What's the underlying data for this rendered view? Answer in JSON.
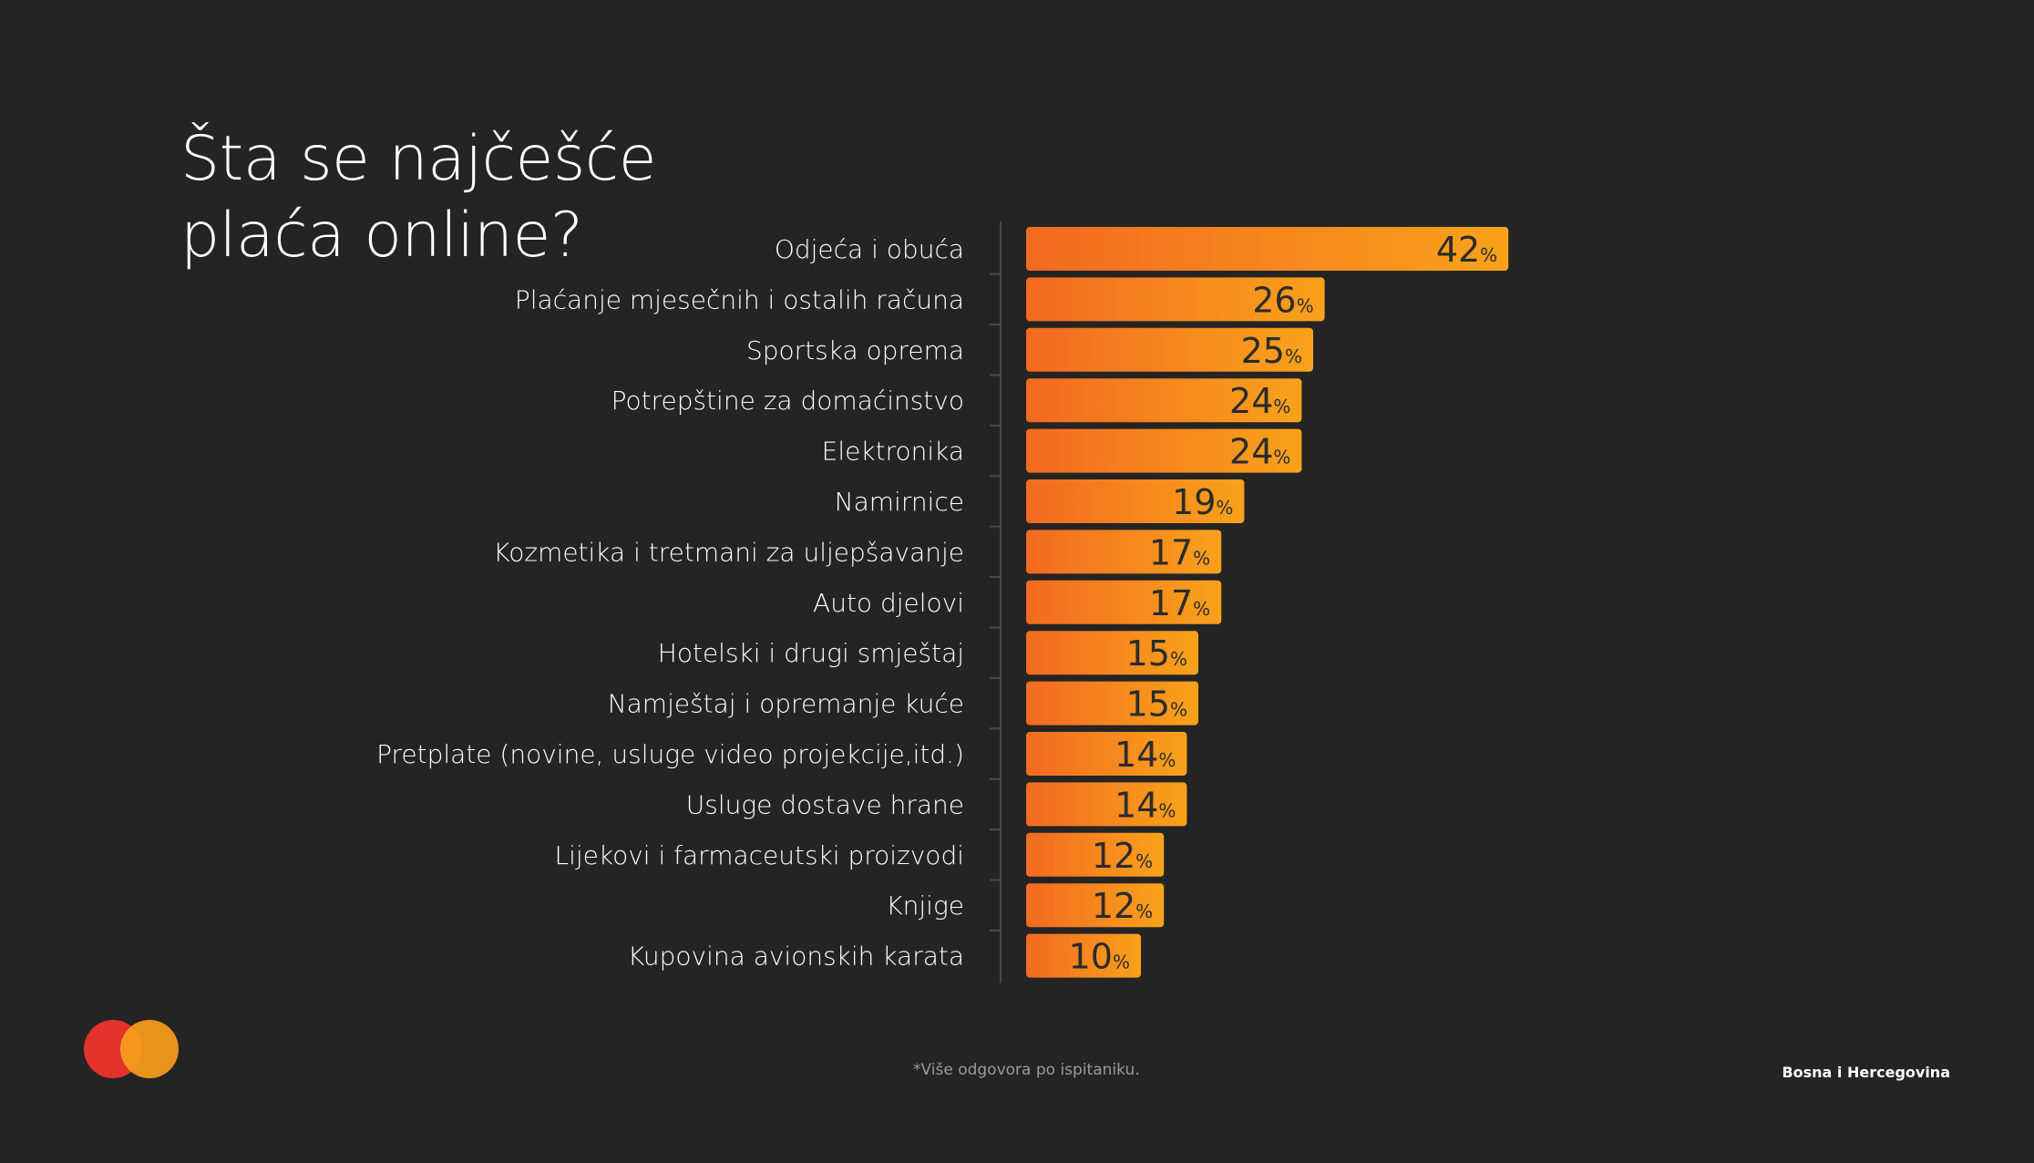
{
  "header": {
    "title_line1": "Šta se najčešće",
    "title_line2": "plaća online?"
  },
  "chart_data": {
    "type": "bar",
    "orientation": "horizontal",
    "title": "Šta se najčešće plaća online?",
    "categories": [
      "Odjeća i obuća",
      "Plaćanje mjesečnih i ostalih računa",
      "Sportska oprema",
      "Potrepštine za domaćinstvo",
      "Elektronika",
      "Namirnice",
      "Kozmetika i tretmani za uljepšavanje",
      "Auto djelovi",
      "Hotelski i drugi smještaj",
      "Namještaj i opremanje kuće",
      "Pretplate (novine, usluge video projekcije,itd.)",
      "Usluge dostave hrane",
      "Lijekovi i farmaceutski proizvodi",
      "Knjige",
      "Kupovina avionskih karata"
    ],
    "values": [
      42,
      26,
      25,
      24,
      24,
      19,
      17,
      17,
      15,
      15,
      14,
      14,
      12,
      12,
      10
    ],
    "unit": "%",
    "colors": {
      "bar_start": "#F26A21",
      "bar_end": "#F9A21B",
      "value_text": "#2b2b2b",
      "axis": "#4a4a4a"
    }
  },
  "footer": {
    "note": "*Više odgovora po ispitaniku.",
    "region": "Bosna i Hercegovina"
  },
  "brand": {
    "logo_icon": "mastercard-logo-icon",
    "red": "#E5312B",
    "orange": "#F79E1B"
  }
}
